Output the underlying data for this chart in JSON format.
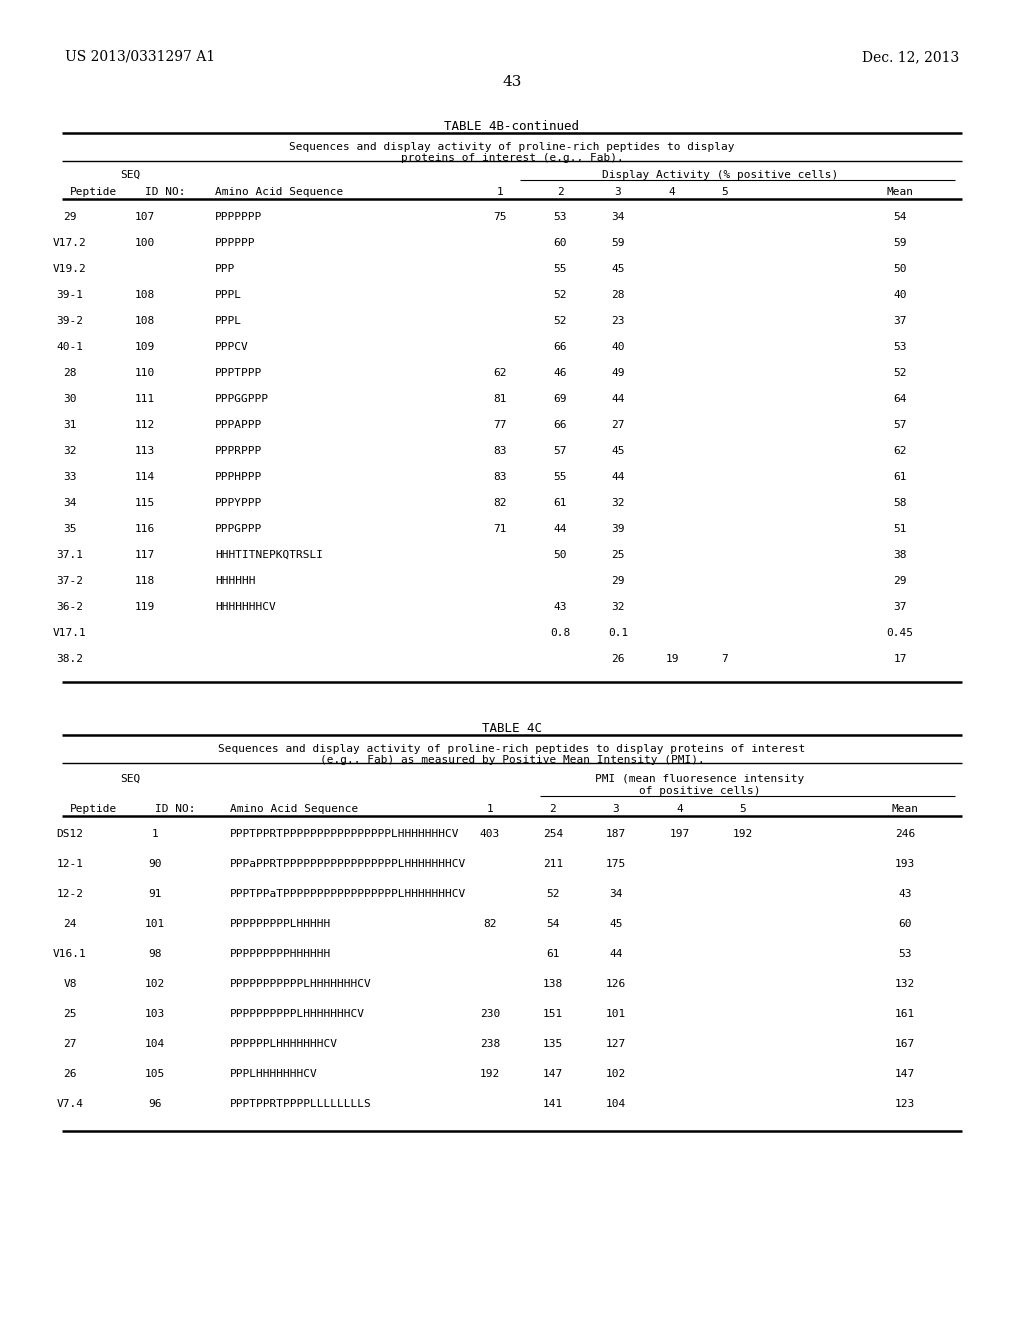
{
  "page_header_left": "US 2013/0331297 A1",
  "page_header_right": "Dec. 12, 2013",
  "page_number": "43",
  "table4b_title": "TABLE 4B-continued",
  "table4b_subtitle1": "Sequences and display activity of proline-rich peptides to display",
  "table4b_subtitle2": "proteins of interest (e.g., Fab).",
  "table4b_rows": [
    [
      "29",
      "107",
      "PPPPPPP",
      "75",
      "53",
      "34",
      "",
      "",
      "54"
    ],
    [
      "V17.2",
      "100",
      "PPPPPP",
      "",
      "60",
      "59",
      "",
      "",
      "59"
    ],
    [
      "V19.2",
      "",
      "PPP",
      "",
      "55",
      "45",
      "",
      "",
      "50"
    ],
    [
      "39-1",
      "108",
      "PPPL",
      "",
      "52",
      "28",
      "",
      "",
      "40"
    ],
    [
      "39-2",
      "108",
      "PPPL",
      "",
      "52",
      "23",
      "",
      "",
      "37"
    ],
    [
      "40-1",
      "109",
      "PPPCV",
      "",
      "66",
      "40",
      "",
      "",
      "53"
    ],
    [
      "28",
      "110",
      "PPPTPPP",
      "62",
      "46",
      "49",
      "",
      "",
      "52"
    ],
    [
      "30",
      "111",
      "PPPGGPPP",
      "81",
      "69",
      "44",
      "",
      "",
      "64"
    ],
    [
      "31",
      "112",
      "PPPAPPP",
      "77",
      "66",
      "27",
      "",
      "",
      "57"
    ],
    [
      "32",
      "113",
      "PPPRPPP",
      "83",
      "57",
      "45",
      "",
      "",
      "62"
    ],
    [
      "33",
      "114",
      "PPPHPPP",
      "83",
      "55",
      "44",
      "",
      "",
      "61"
    ],
    [
      "34",
      "115",
      "PPPYPPP",
      "82",
      "61",
      "32",
      "",
      "",
      "58"
    ],
    [
      "35",
      "116",
      "PPPGPPP",
      "71",
      "44",
      "39",
      "",
      "",
      "51"
    ],
    [
      "37.1",
      "117",
      "HHHTITNEPKQTRSLI",
      "",
      "50",
      "25",
      "",
      "",
      "38"
    ],
    [
      "37-2",
      "118",
      "HHHHHH",
      "",
      "",
      "29",
      "",
      "",
      "29"
    ],
    [
      "36-2",
      "119",
      "HHHHHHHCV",
      "",
      "43",
      "32",
      "",
      "",
      "37"
    ],
    [
      "V17.1",
      "",
      "",
      "",
      "0.8",
      "0.1",
      "",
      "",
      "0.45"
    ],
    [
      "38.2",
      "",
      "",
      "",
      "",
      "26",
      "19",
      "7",
      "17"
    ]
  ],
  "table4c_title": "TABLE 4C",
  "table4c_subtitle1": "Sequences and display activity of proline-rich peptides to display proteins of interest",
  "table4c_subtitle2": "(e.g., Fab) as measured by Positive Mean Intensity (PMI).",
  "table4c_rows": [
    [
      "DS12",
      "1",
      "PPPTPPRTPPPPPPPPPPPPPPPPLHHHHHHHCV",
      "403",
      "254",
      "187",
      "197",
      "192",
      "246"
    ],
    [
      "12-1",
      "90",
      "PPPaPPRTPPPPPPPPPPPPPPPPPLHHHHHHHCV",
      "",
      "211",
      "175",
      "",
      "",
      "193"
    ],
    [
      "12-2",
      "91",
      "PPPTPPaTPPPPPPPPPPPPPPPPPLHHHHHHHCV",
      "",
      "52",
      "34",
      "",
      "",
      "43"
    ],
    [
      "24",
      "101",
      "PPPPPPPPPLHHHHH",
      "82",
      "54",
      "45",
      "",
      "",
      "60"
    ],
    [
      "V16.1",
      "98",
      "PPPPPPPPPHHHHHH",
      "",
      "61",
      "44",
      "",
      "",
      "53"
    ],
    [
      "V8",
      "102",
      "PPPPPPPPPPPLHHHHHHHCV",
      "",
      "138",
      "126",
      "",
      "",
      "132"
    ],
    [
      "25",
      "103",
      "PPPPPPPPPPLHHHHHHHCV",
      "230",
      "151",
      "101",
      "",
      "",
      "161"
    ],
    [
      "27",
      "104",
      "PPPPPPLHHHHHHHCV",
      "238",
      "135",
      "127",
      "",
      "",
      "167"
    ],
    [
      "26",
      "105",
      "PPPLHHHHHHHCV",
      "192",
      "147",
      "102",
      "",
      "",
      "147"
    ],
    [
      "V7.4",
      "96",
      "PPPTPPRTPPPPLLLLLLLLS",
      "",
      "141",
      "104",
      "",
      "",
      "123"
    ]
  ],
  "bg_color": "#ffffff",
  "text_color": "#000000"
}
